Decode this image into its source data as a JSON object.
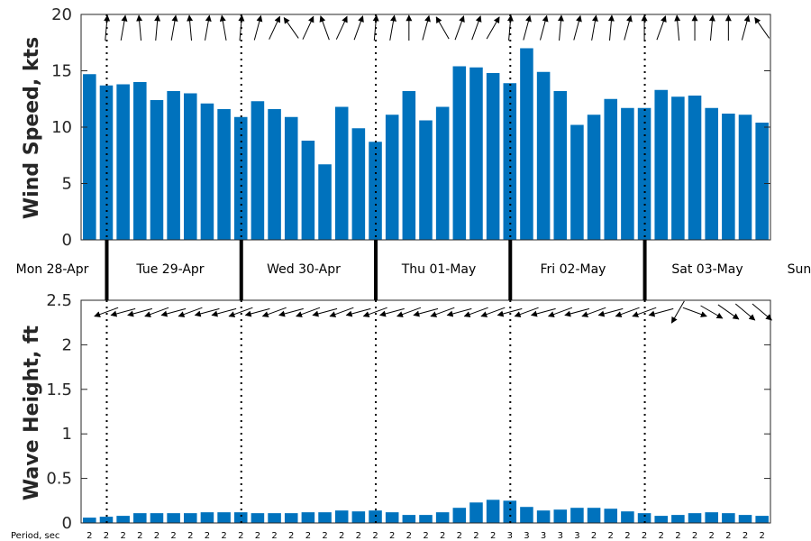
{
  "colors": {
    "bar": "#0072BD",
    "axis": "#262626",
    "arrow": "#000000"
  },
  "days": [
    "Mon 28-Apr",
    "Tue 29-Apr",
    "Wed 30-Apr",
    "Thu 01-May",
    "Fri 02-May",
    "Sat 03-May",
    "Sun"
  ],
  "period_label": "Period, sec",
  "periods": [
    2,
    2,
    2,
    2,
    2,
    2,
    2,
    2,
    2,
    2,
    2,
    2,
    2,
    2,
    2,
    2,
    2,
    2,
    2,
    2,
    2,
    2,
    2,
    2,
    2,
    3,
    3,
    3,
    3,
    3,
    2,
    2,
    2,
    2,
    2,
    2,
    2,
    2,
    2,
    2,
    2
  ],
  "chart_data": [
    {
      "type": "bar",
      "ylabel": "Wind Speed, kts",
      "ylim": [
        0,
        20
      ],
      "yticks": [
        0,
        5,
        10,
        15,
        20
      ],
      "values": [
        14.7,
        13.7,
        13.8,
        14.0,
        12.4,
        13.2,
        13.0,
        12.1,
        11.6,
        10.9,
        12.3,
        11.6,
        10.9,
        8.8,
        6.7,
        11.8,
        9.9,
        8.7,
        11.1,
        13.2,
        10.6,
        11.8,
        15.4,
        15.3,
        14.8,
        13.9,
        17.0,
        14.9,
        13.2,
        10.2,
        11.1,
        12.5,
        11.7,
        11.7,
        13.3,
        12.7,
        12.8,
        11.7,
        11.2,
        11.1,
        10.4
      ],
      "direction_deg": [
        null,
        275,
        280,
        265,
        275,
        280,
        265,
        280,
        260,
        275,
        285,
        295,
        235,
        295,
        250,
        295,
        290,
        275,
        280,
        270,
        285,
        240,
        290,
        290,
        300,
        275,
        285,
        285,
        275,
        285,
        280,
        275,
        285,
        270,
        290,
        265,
        270,
        275,
        270,
        285,
        235
      ]
    },
    {
      "type": "bar",
      "ylabel": "Wave Height, ft",
      "ylim": [
        0,
        2.5
      ],
      "yticks": [
        0,
        0.5,
        1,
        1.5,
        2,
        2.5
      ],
      "ytick_labels": [
        "0",
        "0.5",
        "1",
        "1.5",
        "2",
        "2.5"
      ],
      "values": [
        0.06,
        0.07,
        0.08,
        0.11,
        0.11,
        0.11,
        0.11,
        0.12,
        0.12,
        0.12,
        0.11,
        0.11,
        0.11,
        0.12,
        0.12,
        0.14,
        0.13,
        0.14,
        0.12,
        0.09,
        0.09,
        0.12,
        0.17,
        0.23,
        0.26,
        0.25,
        0.18,
        0.14,
        0.15,
        0.17,
        0.17,
        0.16,
        0.13,
        0.11,
        0.08,
        0.09,
        0.11,
        0.12,
        0.11,
        0.09,
        0.08
      ],
      "direction_deg": [
        null,
        160,
        165,
        165,
        160,
        165,
        160,
        165,
        165,
        160,
        165,
        160,
        165,
        160,
        165,
        160,
        165,
        160,
        165,
        160,
        165,
        160,
        165,
        160,
        160,
        165,
        160,
        165,
        160,
        165,
        160,
        165,
        160,
        160,
        165,
        120,
        20,
        30,
        35,
        40,
        40
      ]
    }
  ]
}
